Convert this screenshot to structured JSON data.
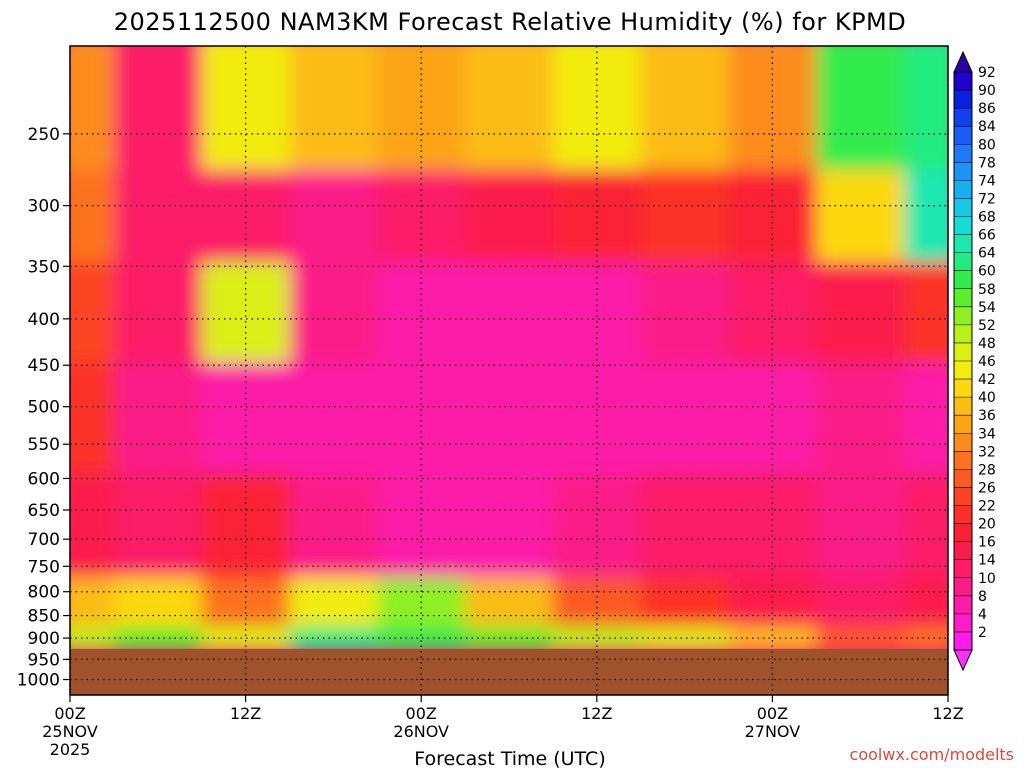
{
  "chart_data": {
    "type": "heatmap",
    "title": "2025112500 NAM3KM Forecast Relative Humidity (%) for KPMD",
    "xlabel": "Forecast Time (UTC)",
    "ylabel": "",
    "x_ticks": [
      {
        "hour": 0,
        "label": "00Z",
        "sub": "25NOV",
        "sub2": "2025"
      },
      {
        "hour": 12,
        "label": "12Z",
        "sub": "",
        "sub2": ""
      },
      {
        "hour": 24,
        "label": "00Z",
        "sub": "26NOV",
        "sub2": ""
      },
      {
        "hour": 36,
        "label": "12Z",
        "sub": "",
        "sub2": ""
      },
      {
        "hour": 48,
        "label": "00Z",
        "sub": "27NOV",
        "sub2": ""
      },
      {
        "hour": 60,
        "label": "12Z",
        "sub": "",
        "sub2": ""
      }
    ],
    "xlim": [
      0,
      60
    ],
    "y_scale": "log-pressure",
    "ylim": [
      1040,
      200
    ],
    "y_ticks": [
      250,
      300,
      350,
      400,
      450,
      500,
      550,
      600,
      650,
      700,
      750,
      800,
      850,
      900,
      950,
      1000
    ],
    "ground_level_hPa": 925,
    "ground_color": "#a0522d",
    "grid": true,
    "colorbar": {
      "labels": [
        "92",
        "90",
        "86",
        "84",
        "80",
        "78",
        "74",
        "72",
        "68",
        "66",
        "64",
        "60",
        "58",
        "54",
        "52",
        "48",
        "46",
        "42",
        "40",
        "36",
        "34",
        "32",
        "28",
        "26",
        "22",
        "20",
        "16",
        "14",
        "10",
        "8",
        "4",
        "2"
      ],
      "colors": [
        "#2200cc",
        "#0b1fe0",
        "#1140ee",
        "#1a5cf5",
        "#1e78f8",
        "#1c93f6",
        "#19aef0",
        "#18c6e6",
        "#16dcd8",
        "#1ee8b0",
        "#22ec80",
        "#32ec4e",
        "#5cee2c",
        "#8ef024",
        "#b8f01c",
        "#daf014",
        "#f2ec10",
        "#fcd810",
        "#fcbc12",
        "#fca416",
        "#fc8c1a",
        "#fc721e",
        "#fc5a20",
        "#fc4422",
        "#fc3028",
        "#fc2034",
        "#fc1c4c",
        "#fc1c68",
        "#fc1c88",
        "#fc1ca8",
        "#fc1cc8",
        "#fc1cea"
      ]
    },
    "series": [
      {
        "name": "RH 250 hPa",
        "hour": [
          0,
          6,
          12,
          18,
          24,
          30,
          36,
          42,
          48,
          54,
          60
        ],
        "values": [
          34,
          14,
          46,
          40,
          36,
          38,
          44,
          40,
          34,
          60,
          62
        ]
      },
      {
        "name": "RH 300 hPa",
        "hour": [
          0,
          6,
          12,
          18,
          24,
          30,
          36,
          42,
          48,
          54,
          60
        ],
        "values": [
          30,
          12,
          12,
          10,
          12,
          16,
          20,
          22,
          20,
          42,
          66
        ]
      },
      {
        "name": "RH 400 hPa",
        "hour": [
          0,
          6,
          12,
          18,
          24,
          30,
          36,
          42,
          48,
          54,
          60
        ],
        "values": [
          26,
          14,
          48,
          10,
          8,
          8,
          8,
          10,
          12,
          16,
          22
        ]
      },
      {
        "name": "RH 500 hPa",
        "hour": [
          0,
          6,
          12,
          18,
          24,
          30,
          36,
          42,
          48,
          54,
          60
        ],
        "values": [
          22,
          10,
          8,
          6,
          8,
          6,
          6,
          6,
          8,
          10,
          8
        ]
      },
      {
        "name": "RH 700 hPa",
        "hour": [
          0,
          6,
          12,
          18,
          24,
          30,
          36,
          42,
          48,
          54,
          60
        ],
        "values": [
          16,
          14,
          20,
          10,
          8,
          8,
          10,
          14,
          12,
          10,
          14
        ]
      },
      {
        "name": "RH 850 hPa",
        "hour": [
          0,
          6,
          12,
          18,
          24,
          30,
          36,
          42,
          48,
          54,
          60
        ],
        "values": [
          40,
          42,
          30,
          46,
          54,
          40,
          28,
          22,
          16,
          14,
          16
        ]
      },
      {
        "name": "RH 900 hPa",
        "hour": [
          0,
          6,
          12,
          18,
          24,
          30,
          36,
          42,
          48,
          54,
          60
        ],
        "values": [
          52,
          56,
          48,
          62,
          60,
          56,
          52,
          48,
          40,
          28,
          30
        ]
      }
    ]
  },
  "credit": "coolwx.com/modelts"
}
